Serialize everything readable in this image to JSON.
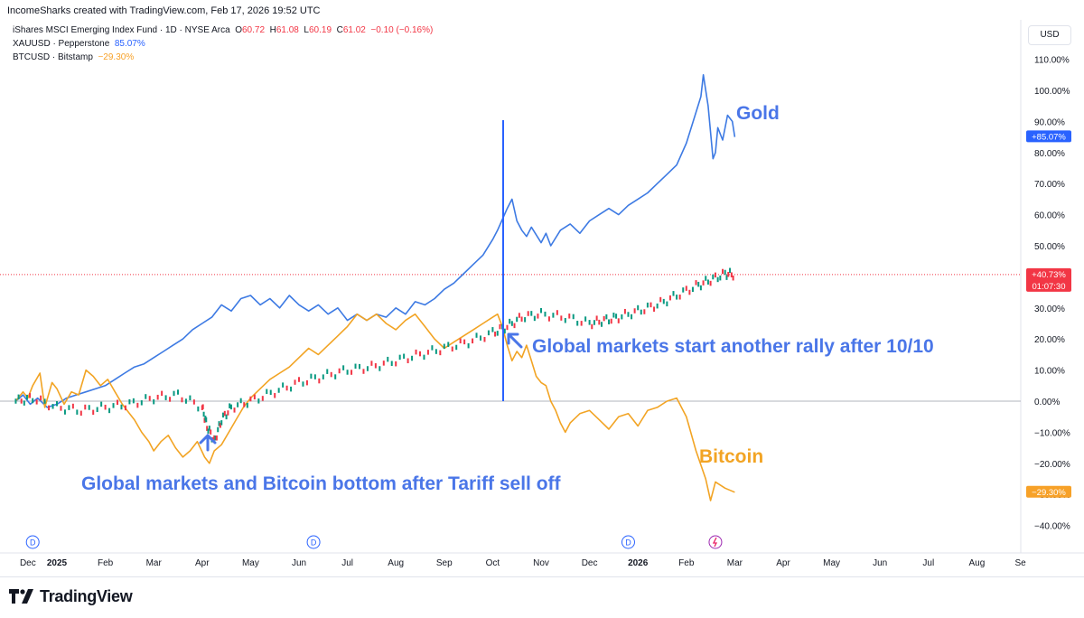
{
  "header": {
    "created": "IncomeSharks created with TradingView.com, Feb 17, 2026 19:52 UTC",
    "main_symbol": "iShares MSCI Emerging Index Fund · 1D · NYSE Arca",
    "ohlc": {
      "o_label": "O",
      "o": "60.72",
      "h_label": "H",
      "h": "61.08",
      "l_label": "L",
      "l": "60.19",
      "c_label": "C",
      "c": "61.02",
      "chg": "−0.10 (−0.16%)"
    },
    "series2_name": "XAUUSD · Pepperstone",
    "series2_value": "85.07%",
    "series3_name": "BTCUSD · Bitstamp",
    "series3_value": "−29.30%",
    "currency": "USD"
  },
  "brand": "TradingView",
  "colors": {
    "gold": "#3d7ae3",
    "bitcoin": "#f2a424",
    "up": "#089981",
    "down": "#f23645",
    "annotation": "#4a76e8",
    "bitcoin_label": "#f2a424"
  },
  "chart_data": {
    "type": "line",
    "y_unit": "%",
    "ylim": [
      -45,
      115
    ],
    "y_ticks": [
      "110.00%",
      "100.00%",
      "90.00%",
      "80.00%",
      "70.00%",
      "60.00%",
      "50.00%",
      "40.00%",
      "30.00%",
      "20.00%",
      "10.00%",
      "0.00%",
      "−10.00%",
      "−20.00%",
      "−30.00%",
      "−40.00%"
    ],
    "y_tick_values": [
      110,
      100,
      90,
      80,
      70,
      60,
      50,
      40,
      30,
      20,
      10,
      0,
      -10,
      -20,
      -30,
      -40
    ],
    "x_ticks": [
      "Dec",
      "2025",
      "Feb",
      "Mar",
      "Apr",
      "May",
      "Jun",
      "Jul",
      "Aug",
      "Sep",
      "Oct",
      "Nov",
      "Dec",
      "2026",
      "Feb",
      "Mar",
      "Apr",
      "May",
      "Jun",
      "Jul",
      "Aug",
      "Se"
    ],
    "x_tick_months": [
      -0.6,
      0,
      1,
      2,
      3,
      4,
      5,
      6,
      7,
      8,
      9,
      10,
      11,
      12,
      13,
      14,
      15,
      16,
      17,
      18,
      19,
      19.9
    ],
    "x_bold": [
      "2025",
      "2026"
    ],
    "series": [
      {
        "name": "XAUUSD · Pepperstone",
        "color": "#3d7ae3",
        "points": [
          [
            -0.85,
            0
          ],
          [
            -0.7,
            2
          ],
          [
            -0.55,
            -1
          ],
          [
            -0.4,
            1
          ],
          [
            -0.2,
            -2
          ],
          [
            0,
            -1
          ],
          [
            0.2,
            1
          ],
          [
            0.4,
            2
          ],
          [
            0.6,
            3
          ],
          [
            0.8,
            4
          ],
          [
            1,
            5
          ],
          [
            1.2,
            7
          ],
          [
            1.4,
            9
          ],
          [
            1.6,
            11
          ],
          [
            1.8,
            12
          ],
          [
            2,
            14
          ],
          [
            2.2,
            16
          ],
          [
            2.4,
            18
          ],
          [
            2.6,
            20
          ],
          [
            2.8,
            23
          ],
          [
            3,
            25
          ],
          [
            3.2,
            27
          ],
          [
            3.4,
            31
          ],
          [
            3.6,
            29
          ],
          [
            3.8,
            33
          ],
          [
            4,
            34
          ],
          [
            4.2,
            31
          ],
          [
            4.4,
            33
          ],
          [
            4.6,
            30
          ],
          [
            4.8,
            34
          ],
          [
            5,
            31
          ],
          [
            5.2,
            29
          ],
          [
            5.4,
            31
          ],
          [
            5.6,
            28
          ],
          [
            5.8,
            30
          ],
          [
            6,
            26
          ],
          [
            6.2,
            28
          ],
          [
            6.4,
            26
          ],
          [
            6.6,
            28
          ],
          [
            6.8,
            27
          ],
          [
            7,
            30
          ],
          [
            7.2,
            28
          ],
          [
            7.4,
            32
          ],
          [
            7.6,
            31
          ],
          [
            7.8,
            33
          ],
          [
            8,
            36
          ],
          [
            8.2,
            38
          ],
          [
            8.4,
            41
          ],
          [
            8.6,
            44
          ],
          [
            8.8,
            47
          ],
          [
            9,
            52
          ],
          [
            9.1,
            55
          ],
          [
            9.3,
            62
          ],
          [
            9.4,
            65
          ],
          [
            9.5,
            58
          ],
          [
            9.6,
            55
          ],
          [
            9.7,
            53
          ],
          [
            9.8,
            56
          ],
          [
            10,
            51
          ],
          [
            10.1,
            54
          ],
          [
            10.2,
            50
          ],
          [
            10.4,
            55
          ],
          [
            10.6,
            57
          ],
          [
            10.8,
            54
          ],
          [
            11,
            58
          ],
          [
            11.2,
            60
          ],
          [
            11.4,
            62
          ],
          [
            11.6,
            60
          ],
          [
            11.8,
            63
          ],
          [
            12,
            65
          ],
          [
            12.2,
            67
          ],
          [
            12.4,
            70
          ],
          [
            12.6,
            73
          ],
          [
            12.8,
            76
          ],
          [
            13,
            83
          ],
          [
            13.1,
            88
          ],
          [
            13.3,
            98
          ],
          [
            13.35,
            105
          ],
          [
            13.45,
            95
          ],
          [
            13.55,
            78
          ],
          [
            13.6,
            80
          ],
          [
            13.65,
            88
          ],
          [
            13.75,
            84
          ],
          [
            13.85,
            92
          ],
          [
            13.95,
            90
          ],
          [
            14,
            85
          ]
        ]
      },
      {
        "name": "BTCUSD · Bitstamp",
        "color": "#f2a424",
        "points": [
          [
            -0.85,
            0
          ],
          [
            -0.7,
            3
          ],
          [
            -0.6,
            1
          ],
          [
            -0.5,
            5
          ],
          [
            -0.35,
            9
          ],
          [
            -0.25,
            -2
          ],
          [
            -0.1,
            6
          ],
          [
            0,
            4
          ],
          [
            0.15,
            -1
          ],
          [
            0.3,
            3
          ],
          [
            0.45,
            2
          ],
          [
            0.6,
            10
          ],
          [
            0.75,
            8
          ],
          [
            0.9,
            5
          ],
          [
            1.05,
            7
          ],
          [
            1.2,
            3
          ],
          [
            1.35,
            -1
          ],
          [
            1.5,
            -4
          ],
          [
            1.6,
            -6
          ],
          [
            1.75,
            -10
          ],
          [
            1.9,
            -13
          ],
          [
            2,
            -16
          ],
          [
            2.15,
            -13
          ],
          [
            2.3,
            -11
          ],
          [
            2.45,
            -15
          ],
          [
            2.6,
            -18
          ],
          [
            2.75,
            -16
          ],
          [
            2.9,
            -13
          ],
          [
            3.05,
            -18
          ],
          [
            3.15,
            -20
          ],
          [
            3.25,
            -16
          ],
          [
            3.4,
            -14
          ],
          [
            3.55,
            -10
          ],
          [
            3.7,
            -6
          ],
          [
            3.85,
            -2
          ],
          [
            4,
            1
          ],
          [
            4.2,
            4
          ],
          [
            4.4,
            7
          ],
          [
            4.6,
            9
          ],
          [
            4.8,
            11
          ],
          [
            5,
            14
          ],
          [
            5.2,
            17
          ],
          [
            5.4,
            15
          ],
          [
            5.6,
            18
          ],
          [
            5.8,
            21
          ],
          [
            6,
            24
          ],
          [
            6.2,
            28
          ],
          [
            6.4,
            26
          ],
          [
            6.6,
            28
          ],
          [
            6.8,
            25
          ],
          [
            7,
            23
          ],
          [
            7.2,
            26
          ],
          [
            7.4,
            28
          ],
          [
            7.6,
            24
          ],
          [
            7.8,
            20
          ],
          [
            8,
            17
          ],
          [
            8.2,
            19
          ],
          [
            8.4,
            21
          ],
          [
            8.6,
            23
          ],
          [
            8.8,
            25
          ],
          [
            9,
            27
          ],
          [
            9.1,
            28
          ],
          [
            9.2,
            24
          ],
          [
            9.3,
            18
          ],
          [
            9.4,
            13
          ],
          [
            9.5,
            16
          ],
          [
            9.6,
            14
          ],
          [
            9.7,
            18
          ],
          [
            9.8,
            13
          ],
          [
            9.9,
            8
          ],
          [
            10,
            6
          ],
          [
            10.1,
            5
          ],
          [
            10.2,
            0
          ],
          [
            10.3,
            -3
          ],
          [
            10.4,
            -7
          ],
          [
            10.5,
            -10
          ],
          [
            10.6,
            -7
          ],
          [
            10.8,
            -4
          ],
          [
            11,
            -3
          ],
          [
            11.2,
            -6
          ],
          [
            11.4,
            -9
          ],
          [
            11.6,
            -5
          ],
          [
            11.8,
            -4
          ],
          [
            12,
            -8
          ],
          [
            12.2,
            -3
          ],
          [
            12.4,
            -2
          ],
          [
            12.6,
            0
          ],
          [
            12.8,
            1
          ],
          [
            13,
            -5
          ],
          [
            13.2,
            -16
          ],
          [
            13.4,
            -25
          ],
          [
            13.5,
            -32
          ],
          [
            13.6,
            -26
          ],
          [
            13.8,
            -28
          ],
          [
            14,
            -29.3
          ]
        ]
      },
      {
        "name": "iShares MSCI Emerging Index Fund",
        "color": "#089981",
        "points": [
          [
            -0.85,
            0
          ],
          [
            -0.5,
            1
          ],
          [
            0,
            -2
          ],
          [
            0.5,
            -3
          ],
          [
            1,
            -2
          ],
          [
            1.5,
            -1
          ],
          [
            2,
            1
          ],
          [
            2.5,
            2
          ],
          [
            3,
            -2
          ],
          [
            3.1,
            -8
          ],
          [
            3.25,
            -13
          ],
          [
            3.4,
            -6
          ],
          [
            3.6,
            -2
          ],
          [
            4,
            0
          ],
          [
            4.5,
            3
          ],
          [
            5,
            6
          ],
          [
            5.5,
            8
          ],
          [
            6,
            10
          ],
          [
            6.5,
            11
          ],
          [
            7,
            13
          ],
          [
            7.5,
            15
          ],
          [
            8,
            17
          ],
          [
            8.5,
            19
          ],
          [
            9,
            22
          ],
          [
            9.3,
            24
          ],
          [
            9.6,
            27
          ],
          [
            10,
            28
          ],
          [
            10.5,
            27
          ],
          [
            11,
            25
          ],
          [
            11.3,
            26
          ],
          [
            11.6,
            27
          ],
          [
            12,
            29
          ],
          [
            12.4,
            31
          ],
          [
            12.8,
            34
          ],
          [
            13.2,
            37
          ],
          [
            13.5,
            39
          ],
          [
            13.8,
            41
          ],
          [
            14,
            40.73
          ]
        ]
      }
    ],
    "price_labels": [
      {
        "text": "+85.07%",
        "value": 85.07,
        "color": "#2962ff"
      },
      {
        "text": "+40.73%",
        "value": 40.73,
        "color": "#f23645",
        "sub": "01:07:30"
      },
      {
        "text": "−29.30%",
        "value": -29.3,
        "color": "#f7a128"
      }
    ],
    "annotations": {
      "gold_label": "Gold",
      "bitcoin_label": "Bitcoin",
      "rally_text": "Global markets start another rally after 10/10",
      "bottom_text": "Global markets and Bitcoin bottom after Tariff sell off"
    },
    "dividend_marker": "D",
    "current_value_line": 40.73
  }
}
